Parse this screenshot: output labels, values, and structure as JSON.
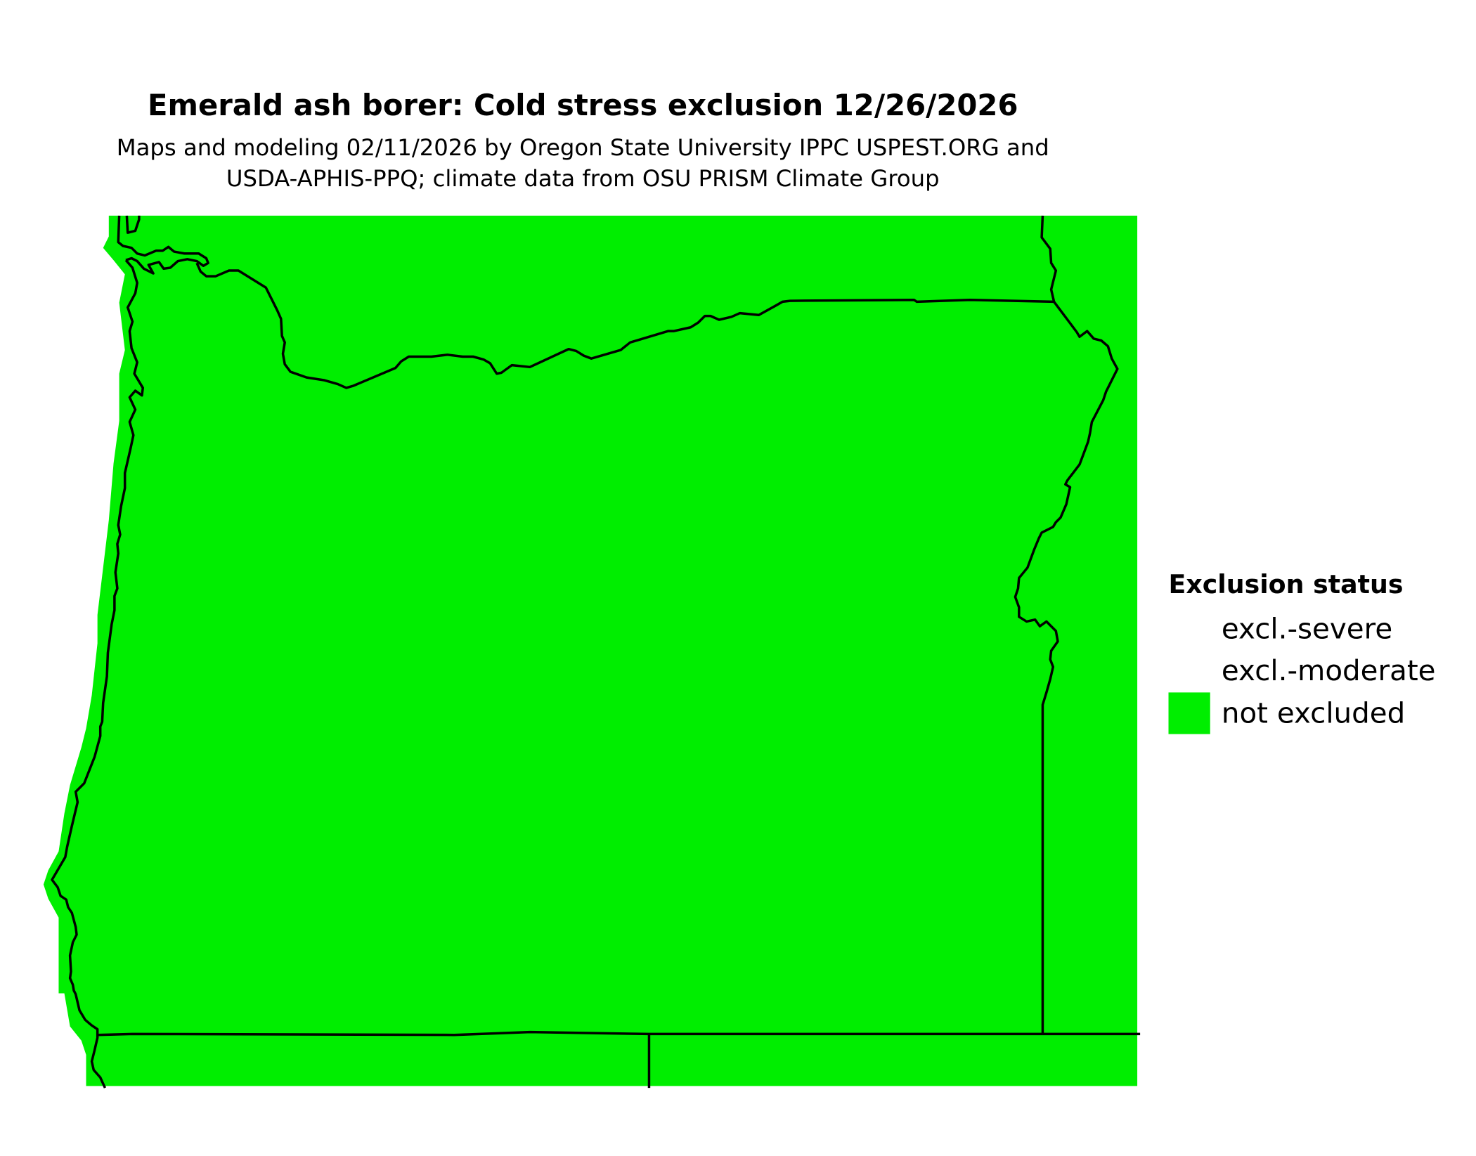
{
  "title": "Emerald ash borer: Cold stress exclusion 12/26/2026",
  "subtitle_line1": "Maps and modeling 02/11/2026 by Oregon State University IPPC USPEST.ORG and",
  "subtitle_line2": "USDA-APHIS-PPQ; climate data from OSU PRISM Climate Group",
  "legend": {
    "title": "Exclusion status",
    "items": [
      {
        "label": "excl.-severe",
        "color": ""
      },
      {
        "label": "excl.-moderate",
        "color": ""
      },
      {
        "label": "not excluded",
        "color": "#00EE00"
      }
    ]
  },
  "map": {
    "region": "Oregon",
    "fill_color": "#00EE00",
    "border_color": "#000000"
  }
}
